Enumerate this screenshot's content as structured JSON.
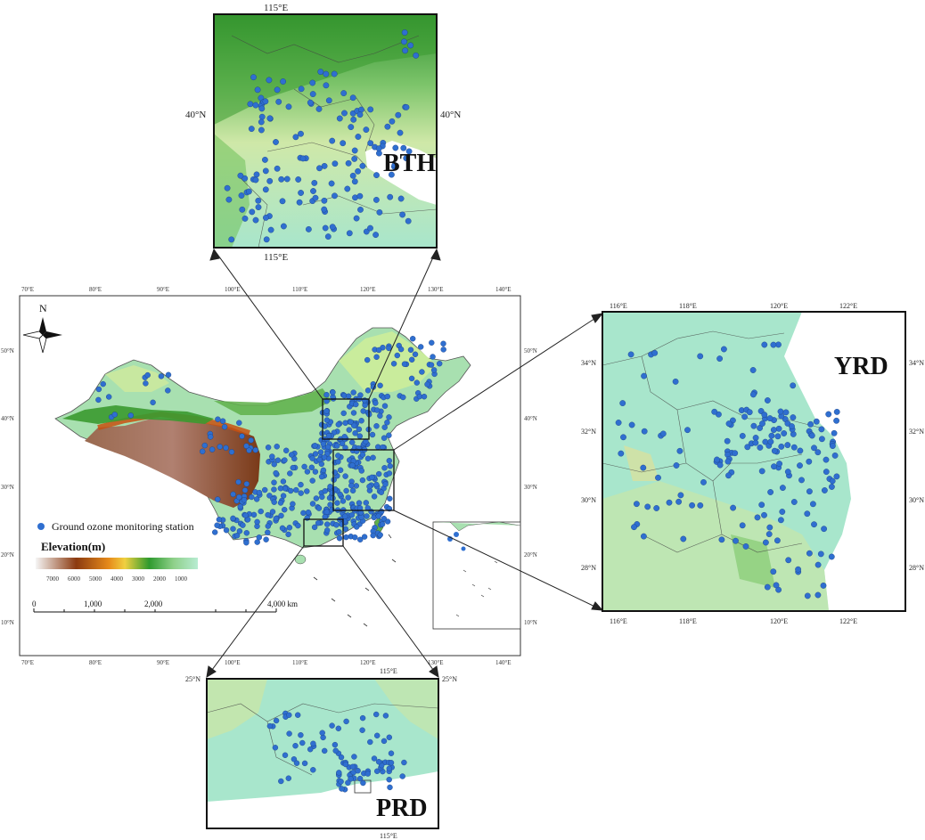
{
  "main_map": {
    "lon_ticks_top": [
      "70°E",
      "80°E",
      "90°E",
      "100°E",
      "110°E",
      "120°E",
      "130°E",
      "140°E"
    ],
    "lon_ticks_bottom": [
      "70°E",
      "80°E",
      "90°E",
      "100°E",
      "110°E",
      "120°E",
      "130°E",
      "140°E"
    ],
    "lat_ticks_left": [
      "50°N",
      "40°N",
      "30°N",
      "20°N",
      "10°N"
    ],
    "lat_ticks_right": [
      "50°N",
      "40°N",
      "30°N",
      "20°N",
      "10°N"
    ],
    "north_label": "N",
    "legend_station": "Ground ozone monitoring station",
    "elevation_title": "Elevation(m)",
    "elevation_ticks": [
      "7000",
      "6000",
      "5000",
      "4000",
      "3000",
      "2000",
      "1000"
    ],
    "scale_ticks": [
      "0",
      "1,000",
      "2,000",
      "4,000 km"
    ]
  },
  "insets": {
    "bth": {
      "label": "BTH",
      "lon_top": "115°E",
      "lon_bottom": "115°E",
      "lat_left": "40°N",
      "lat_right": "40°N"
    },
    "yrd": {
      "label": "YRD",
      "lon_ticks_top": [
        "116°E",
        "118°E",
        "120°E",
        "122°E"
      ],
      "lon_ticks_bottom": [
        "116°E",
        "118°E",
        "120°E",
        "122°E"
      ],
      "lat_ticks_left": [
        "34°N",
        "32°N",
        "30°N",
        "28°N"
      ],
      "lat_ticks_right": [
        "34°N",
        "32°N",
        "30°N",
        "28°N"
      ]
    },
    "prd": {
      "label": "PRD",
      "lon_top": "115°E",
      "lon_bottom": "115°E",
      "lat_left": "25°N",
      "lat_right": "25°N"
    }
  },
  "colors": {
    "station": "#2f6fd0",
    "elev_high": "#f5f5f5",
    "elev_brown": "#8b3a10",
    "elev_orange": "#e68a1a",
    "elev_green": "#2e9a2e",
    "elev_low": "#b7ecd2"
  }
}
